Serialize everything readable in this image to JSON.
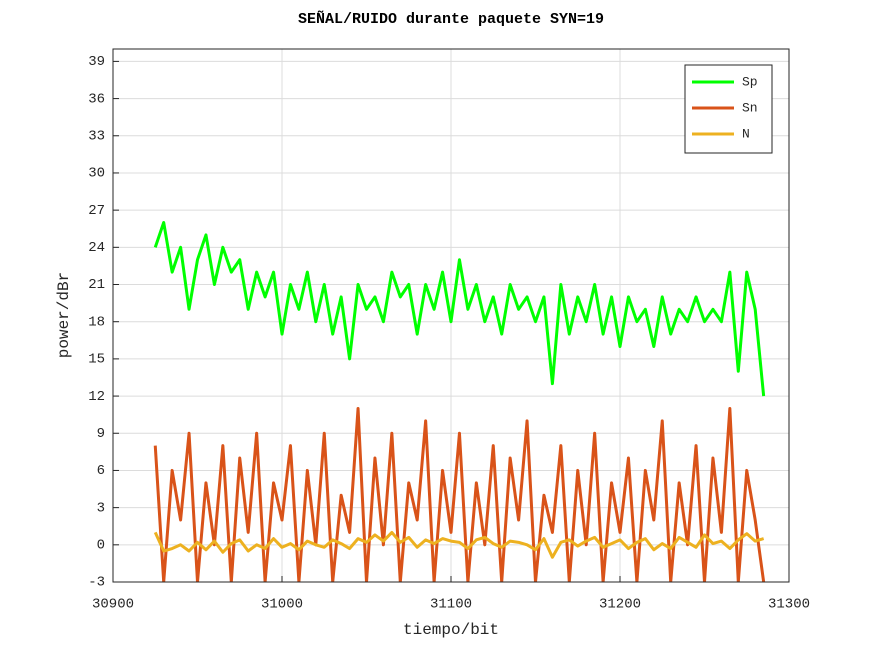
{
  "chart_data": {
    "type": "line",
    "title": "SEÑAL/RUIDO durante paquete SYN=19",
    "xlabel": "tiempo/bit",
    "ylabel": "power/dBr",
    "x": [
      30925,
      30930,
      30935,
      30940,
      30945,
      30950,
      30955,
      30960,
      30965,
      30970,
      30975,
      30980,
      30985,
      30990,
      30995,
      31000,
      31005,
      31010,
      31015,
      31020,
      31025,
      31030,
      31035,
      31040,
      31045,
      31050,
      31055,
      31060,
      31065,
      31070,
      31075,
      31080,
      31085,
      31090,
      31095,
      31100,
      31105,
      31110,
      31115,
      31120,
      31125,
      31130,
      31135,
      31140,
      31145,
      31150,
      31155,
      31160,
      31165,
      31170,
      31175,
      31180,
      31185,
      31190,
      31195,
      31200,
      31205,
      31210,
      31215,
      31220,
      31225,
      31230,
      31235,
      31240,
      31245,
      31250,
      31255,
      31260,
      31265,
      31270,
      31275,
      31280,
      31285
    ],
    "series": [
      {
        "name": "Sp",
        "color": "#00ff00",
        "values": [
          24,
          26,
          22,
          24,
          19,
          23,
          25,
          21,
          24,
          22,
          23,
          19,
          22,
          20,
          22,
          17,
          21,
          19,
          22,
          18,
          21,
          17,
          20,
          15,
          21,
          19,
          20,
          18,
          22,
          20,
          21,
          17,
          21,
          19,
          22,
          18,
          23,
          19,
          21,
          18,
          20,
          17,
          21,
          19,
          20,
          18,
          20,
          13,
          21,
          17,
          20,
          18,
          21,
          17,
          20,
          16,
          20,
          18,
          19,
          16,
          20,
          17,
          19,
          18,
          20,
          18,
          19,
          18,
          22,
          14,
          22,
          19,
          12
        ]
      },
      {
        "name": "Sn",
        "color": "#d95319",
        "values": [
          8,
          -3,
          6,
          2,
          9,
          -3,
          5,
          0,
          8,
          -3,
          7,
          1,
          9,
          -3,
          5,
          2,
          8,
          -3,
          6,
          0,
          9,
          -3,
          4,
          1,
          11,
          -3,
          7,
          0,
          9,
          -3,
          5,
          2,
          10,
          -3,
          6,
          1,
          9,
          -3,
          5,
          0,
          8,
          -3,
          7,
          2,
          10,
          -3,
          4,
          1,
          8,
          -3,
          6,
          0,
          9,
          -3,
          5,
          1,
          7,
          -3,
          6,
          2,
          10,
          -3,
          5,
          0,
          8,
          -3,
          7,
          1,
          11,
          -3,
          6,
          2,
          -3
        ]
      },
      {
        "name": "N",
        "color": "#edb120",
        "values": [
          1,
          -0.5,
          -0.3,
          0,
          -0.5,
          0.2,
          -0.4,
          0.3,
          -0.6,
          0.1,
          0.4,
          -0.5,
          0,
          -0.3,
          0.5,
          -0.2,
          0.1,
          -0.4,
          0.3,
          0,
          -0.2,
          0.4,
          0.1,
          -0.3,
          0.5,
          0.2,
          0.8,
          0.3,
          1,
          0.2,
          0.6,
          -0.2,
          0.4,
          0.1,
          0.5,
          0.3,
          0.2,
          -0.3,
          0.4,
          0.6,
          0.1,
          -0.2,
          0.3,
          0.2,
          0,
          -0.4,
          0.5,
          -1,
          0.2,
          0.4,
          -0.1,
          0.3,
          0.6,
          -0.2,
          0.1,
          0.4,
          -0.3,
          0.2,
          0.5,
          -0.4,
          0.1,
          -0.3,
          0.6,
          0.2,
          -0.2,
          0.8,
          0.1,
          0.3,
          -0.3,
          0.4,
          0.9,
          0.3,
          0.5
        ]
      }
    ],
    "xlim": [
      30900,
      31300
    ],
    "xticks": [
      30900,
      31000,
      31100,
      31200,
      31300
    ],
    "ylim": [
      -3,
      40
    ],
    "yticks": [
      -3,
      0,
      3,
      6,
      9,
      12,
      15,
      18,
      21,
      24,
      27,
      30,
      33,
      36,
      39
    ],
    "grid": true,
    "legend": "top-right"
  }
}
